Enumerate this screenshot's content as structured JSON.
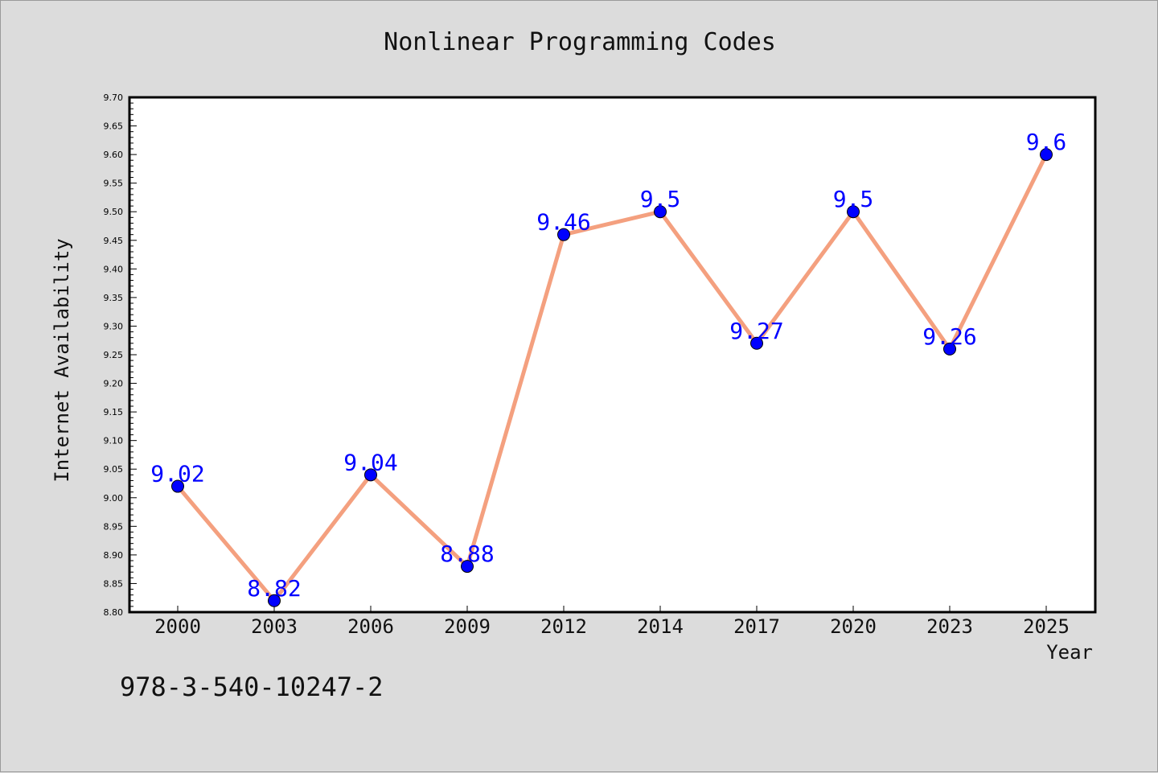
{
  "chart_data": {
    "type": "line",
    "title": "Nonlinear Programming Codes",
    "xlabel": "Year",
    "ylabel": "Internet Availability",
    "categories": [
      "2000",
      "2003",
      "2006",
      "2009",
      "2012",
      "2014",
      "2017",
      "2020",
      "2023",
      "2025"
    ],
    "values": [
      9.02,
      8.82,
      9.04,
      8.88,
      9.46,
      9.5,
      9.27,
      9.5,
      9.26,
      9.6
    ],
    "data_labels": [
      "9.02",
      "8.82",
      "9.04",
      "8.88",
      "9.46",
      "9.5",
      "9.27",
      "9.5",
      "9.26",
      "9.6"
    ],
    "ylim": [
      8.8,
      9.7
    ],
    "y_ticks": [
      "8.80",
      "8.85",
      "8.90",
      "8.95",
      "9.00",
      "9.05",
      "9.10",
      "9.15",
      "9.20",
      "9.25",
      "9.30",
      "9.35",
      "9.40",
      "9.45",
      "9.50",
      "9.55",
      "9.60",
      "9.65",
      "9.70"
    ],
    "grid": false,
    "line_color": "#f4a07f",
    "marker_color": "#0000ff",
    "label_color": "#0000ff"
  },
  "annotation": "978-3-540-10247-2"
}
